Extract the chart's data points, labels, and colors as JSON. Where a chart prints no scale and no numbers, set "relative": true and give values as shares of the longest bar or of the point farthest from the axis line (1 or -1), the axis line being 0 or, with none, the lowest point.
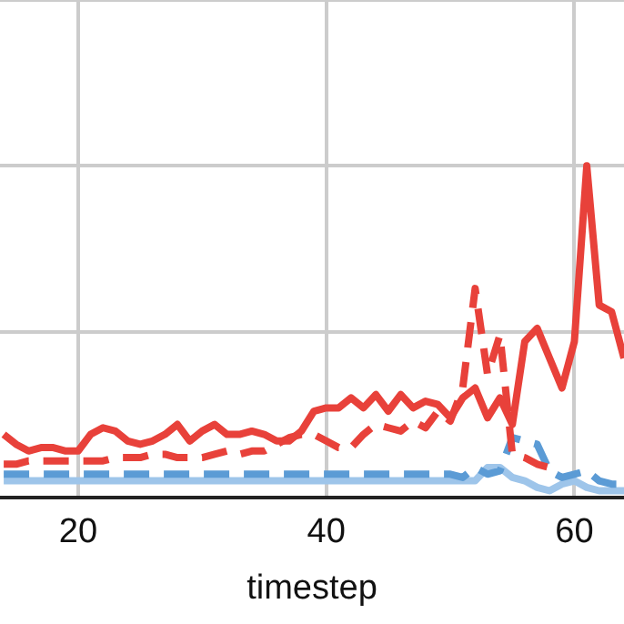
{
  "chart_data": {
    "type": "line",
    "xlabel": "timestep",
    "relative": true,
    "grid": true,
    "legend": false,
    "marker": "none",
    "x": [
      14,
      15,
      16,
      17,
      18,
      19,
      20,
      21,
      22,
      23,
      24,
      25,
      26,
      27,
      28,
      29,
      30,
      31,
      32,
      33,
      34,
      35,
      36,
      37,
      38,
      39,
      40,
      41,
      42,
      43,
      44,
      45,
      46,
      47,
      48,
      49,
      50,
      51,
      52,
      53,
      54,
      55,
      56,
      57,
      58,
      59,
      60,
      61,
      62,
      63,
      64
    ],
    "xlim": [
      13.7,
      64
    ],
    "xticks": [
      20,
      40,
      60
    ],
    "series": [
      {
        "color": "#e8413a",
        "line_style": "solid",
        "values": [
          0.19,
          0.16,
          0.14,
          0.15,
          0.15,
          0.14,
          0.14,
          0.19,
          0.21,
          0.2,
          0.17,
          0.16,
          0.17,
          0.19,
          0.22,
          0.17,
          0.2,
          0.22,
          0.19,
          0.19,
          0.2,
          0.19,
          0.17,
          0.17,
          0.2,
          0.26,
          0.27,
          0.27,
          0.3,
          0.27,
          0.31,
          0.26,
          0.31,
          0.27,
          0.29,
          0.28,
          0.24,
          0.3,
          0.33,
          0.24,
          0.3,
          0.22,
          0.47,
          0.51,
          0.42,
          0.33,
          0.47,
          1,
          0.58,
          0.56,
          0.42
        ]
      },
      {
        "color": "#e8413a",
        "line_style": "dashed",
        "values": [
          0.1,
          0.1,
          0.11,
          0.11,
          0.11,
          0.11,
          0.11,
          0.11,
          0.11,
          0.12,
          0.12,
          0.12,
          0.13,
          0.13,
          0.12,
          0.12,
          0.12,
          0.13,
          0.14,
          0.13,
          0.14,
          0.14,
          0.16,
          0.18,
          0.19,
          0.19,
          0.17,
          0.15,
          0.15,
          0.19,
          0.22,
          0.21,
          0.2,
          0.23,
          0.21,
          0.26,
          0.23,
          0.33,
          0.63,
          0.37,
          0.49,
          0.13,
          0.12,
          0.1,
          0.09,
          null,
          null,
          null,
          null,
          null,
          null
        ]
      },
      {
        "color": "#5b9bd5",
        "line_style": "dashed",
        "values": [
          0.07,
          0.07,
          0.07,
          0.07,
          0.07,
          0.07,
          0.07,
          0.07,
          0.07,
          0.07,
          0.07,
          0.07,
          0.07,
          0.07,
          0.07,
          0.07,
          0.07,
          0.07,
          0.07,
          0.07,
          0.07,
          0.07,
          0.07,
          0.07,
          0.07,
          0.07,
          0.07,
          0.07,
          0.07,
          0.07,
          0.07,
          0.07,
          0.07,
          0.07,
          0.07,
          0.07,
          0.07,
          0.06,
          0.09,
          0.07,
          0.08,
          0.18,
          0.17,
          0.16,
          0.08,
          0.06,
          0.07,
          0.08,
          0.05,
          0.04,
          0.04
        ]
      },
      {
        "color": "#9ec5ea",
        "line_style": "solid",
        "values": [
          0.05,
          0.05,
          0.05,
          0.05,
          0.05,
          0.05,
          0.05,
          0.05,
          0.05,
          0.05,
          0.05,
          0.05,
          0.05,
          0.05,
          0.05,
          0.05,
          0.05,
          0.05,
          0.05,
          0.05,
          0.05,
          0.05,
          0.05,
          0.05,
          0.05,
          0.05,
          0.05,
          0.05,
          0.05,
          0.05,
          0.05,
          0.05,
          0.05,
          0.05,
          0.05,
          0.05,
          0.05,
          0.05,
          0.05,
          0.09,
          0.09,
          0.06,
          0.05,
          0.03,
          0.02,
          0.04,
          0.05,
          0.03,
          0.02,
          0.02,
          0.02
        ]
      }
    ]
  }
}
